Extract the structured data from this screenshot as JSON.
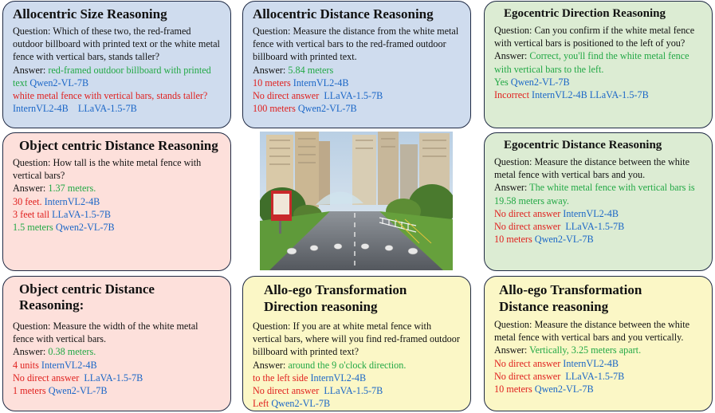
{
  "cards": {
    "c1": {
      "title": "Allocentric Size Reasoning",
      "question": "Question: Which of these two, the red-framed outdoor billboard with printed text or the white metal fence with vertical bars, stands taller?",
      "answer_label": "Answer: ",
      "answer_text": "red-framed outdoor billboard with printed text",
      "answer_model": "Qwen2-VL-7B",
      "wrong1_text": "white metal fence with vertical bars, stands taller?",
      "wrong1_model": "InternVL2-4B    LLaVA-1.5-7B"
    },
    "c2": {
      "title": "Allocentric Distance Reasoning",
      "question": "Question: Measure the distance from the white metal fence with vertical bars to the red-framed outdoor billboard with printed text.",
      "answer_label": "Answer: ",
      "answer_text": "5.84 meters",
      "r1_text": "10 meters",
      "r1_model": "InternVL2-4B",
      "r2_text": "No direct answer",
      "r2_model": "LLaVA-1.5-7B",
      "r3_text": "100 meters",
      "r3_model": "Qwen2-VL-7B"
    },
    "c3": {
      "title": "Egocentric Direction Reasoning",
      "question": "Question: Can you confirm if the white metal fence with vertical bars is positioned to the left of you?",
      "answer_label": "Answer: ",
      "answer_text": "Correct, you'll find the white metal fence with vertical bars to the left.",
      "r1_text": "Yes",
      "r1_model": "Qwen2-VL-7B",
      "r2_text": "Incorrect",
      "r2_model": "InternVL2-4B LLaVA-1.5-7B"
    },
    "c4": {
      "title": "Object centric Distance Reasoning",
      "question": "Question: How tall is the white metal fence with vertical bars?",
      "answer_label": "Answer: ",
      "answer_text": "1.37 meters.",
      "r1_text": "30 feet.",
      "r1_model": "InternVL2-4B",
      "r2_text": "3 feet tall",
      "r2_model": "LLaVA-1.5-7B",
      "r3_text": "1.5 meters",
      "r3_model": "Qwen2-VL-7B"
    },
    "c5": {
      "title": "Egocentric Distance Reasoning",
      "question": "Question: Measure the distance between the white metal fence with vertical bars and you.",
      "answer_label": "Answer: ",
      "answer_text": "The white metal fence with vertical bars is 19.58 meters away.",
      "r1_text": "No direct answer",
      "r1_model": "InternVL2-4B",
      "r2_text": "No direct answer",
      "r2_model": "LLaVA-1.5-7B",
      "r3_text": "10 meters",
      "r3_model": "Qwen2-VL-7B"
    },
    "c6": {
      "title": "Object centric Distance Reasoning:",
      "question": "Question: Measure the width of the white metal fence with vertical bars.",
      "answer_label": "Answer: ",
      "answer_text": "0.38 meters.",
      "r1_text": "4 units",
      "r1_model": "InternVL2-4B",
      "r2_text": "No direct answer",
      "r2_model": "LLaVA-1.5-7B",
      "r3_text": "1 meters",
      "r3_model": "Qwen2-VL-7B"
    },
    "c7": {
      "title": "Allo-ego Transformation Direction reasoning",
      "question": "Question: If you are at white metal fence with vertical bars, where will you find red-framed outdoor billboard with printed text?",
      "answer_label": "Answer: ",
      "answer_text": "around the 9 o'clock direction.",
      "r1_text": "to the left side",
      "r1_model": "InternVL2-4B",
      "r2_text": "No direct answer",
      "r2_model": "LLaVA-1.5-7B",
      "r3_text": "Left",
      "r3_model": "Qwen2-VL-7B"
    },
    "c8": {
      "title": "Allo-ego Transformation Distance reasoning",
      "question": "Question: Measure the distance between the white metal fence with vertical bars and you vertically.",
      "answer_label": "Answer: ",
      "answer_text": "Vertically, 3.25 meters apart.",
      "r1_text": "No direct answer",
      "r1_model": "InternVL2-4B",
      "r2_text": "No direct answer",
      "r2_model": "LLaVA-1.5-7B",
      "r3_text": "10 meters",
      "r3_model": "Qwen2-VL-7B"
    }
  },
  "colors": {
    "correct": "#22a845",
    "incorrect": "#e0201e",
    "model": "#1a66c7",
    "blue_card": "#cfdcee",
    "pink_card": "#fde0db",
    "green_card": "#dcecd3",
    "yellow_card": "#fbf7c6"
  }
}
